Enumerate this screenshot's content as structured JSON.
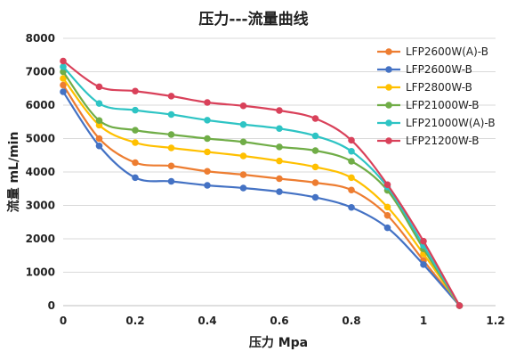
{
  "chart_data": {
    "type": "line",
    "title": "压力---流量曲线",
    "xlabel": "压力 Mpa",
    "ylabel": "流量 mL/min",
    "xlim": [
      0,
      1.2
    ],
    "ylim": [
      0,
      8000
    ],
    "xticks": [
      "0",
      "0.2",
      "0.4",
      "0.6",
      "0.8",
      "1",
      "1.2"
    ],
    "xtick_values": [
      0,
      0.2,
      0.4,
      0.6,
      0.8,
      1.0,
      1.2
    ],
    "yticks": [
      "0",
      "1000",
      "2000",
      "3000",
      "4000",
      "5000",
      "6000",
      "7000",
      "8000"
    ],
    "ytick_values": [
      0,
      1000,
      2000,
      3000,
      4000,
      5000,
      6000,
      7000,
      8000
    ],
    "grid": "horizontal",
    "legend_position": "top-right",
    "x": [
      0,
      0.1,
      0.2,
      0.3,
      0.4,
      0.5,
      0.6,
      0.7,
      0.8,
      0.9,
      1.0,
      1.1
    ],
    "series": [
      {
        "name": "LFP2600W(A)-B",
        "color": "#ed7d31",
        "values": [
          6600,
          5000,
          4280,
          4180,
          4020,
          3920,
          3800,
          3680,
          3460,
          2700,
          1350,
          0
        ]
      },
      {
        "name": "LFP2600W-B",
        "color": "#4472c4",
        "values": [
          6400,
          4780,
          3830,
          3720,
          3600,
          3520,
          3410,
          3240,
          2940,
          2330,
          1230,
          0
        ]
      },
      {
        "name": "LFP2800W-B",
        "color": "#ffc000",
        "values": [
          6800,
          5400,
          4880,
          4720,
          4600,
          4480,
          4330,
          4150,
          3830,
          2950,
          1550,
          0
        ]
      },
      {
        "name": "LFP21000W-B",
        "color": "#70ad47",
        "values": [
          7000,
          5540,
          5250,
          5120,
          5000,
          4900,
          4750,
          4640,
          4320,
          3450,
          1700,
          0
        ]
      },
      {
        "name": "LFP21000W(A)-B",
        "color": "#2ec4c4",
        "values": [
          7150,
          6050,
          5850,
          5720,
          5550,
          5420,
          5300,
          5080,
          4620,
          3550,
          1800,
          0
        ]
      },
      {
        "name": "LFP21200W-B",
        "color": "#d9415a",
        "values": [
          7320,
          6550,
          6420,
          6270,
          6080,
          5980,
          5840,
          5600,
          4950,
          3620,
          1930,
          0
        ]
      }
    ]
  }
}
